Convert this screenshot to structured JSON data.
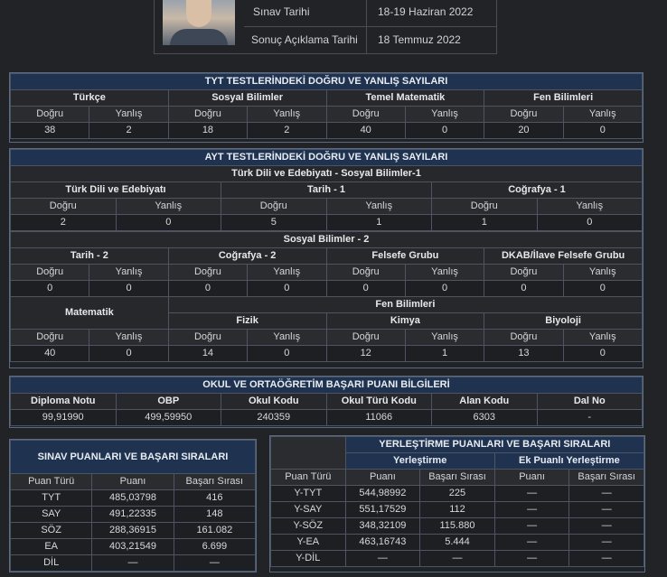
{
  "header": {
    "exam_date_label": "Sınav Tarihi",
    "exam_date_value": "18-19 Haziran 2022",
    "result_date_label": "Sonuç Açıklama Tarihi",
    "result_date_value": "18 Temmuz 2022"
  },
  "tyt": {
    "title": "TYT TESTLERİNDEKİ DOĞRU VE YANLIŞ SAYILARI",
    "subjects": [
      "Türkçe",
      "Sosyal Bilimler",
      "Temel Matematik",
      "Fen Bilimleri"
    ],
    "dogru": "Doğru",
    "yanlis": "Yanlış",
    "values": [
      [
        "38",
        "2"
      ],
      [
        "18",
        "2"
      ],
      [
        "40",
        "0"
      ],
      [
        "20",
        "0"
      ]
    ]
  },
  "ayt": {
    "title": "AYT TESTLERİNDEKİ DOĞRU VE YANLIŞ SAYILARI",
    "group1_title": "Türk Dili ve Edebiyatı - Sosyal Bilimler-1",
    "group1_subjects": [
      "Türk Dili ve Edebiyatı",
      "Tarih - 1",
      "Coğrafya - 1"
    ],
    "group1_values": [
      [
        "2",
        "0"
      ],
      [
        "5",
        "1"
      ],
      [
        "1",
        "0"
      ]
    ],
    "group2_title": "Sosyal Bilimler - 2",
    "group2_subjects": [
      "Tarih - 2",
      "Coğrafya - 2",
      "Felsefe Grubu",
      "DKAB/İlave Felsefe Grubu"
    ],
    "group2_values": [
      [
        "0",
        "0"
      ],
      [
        "0",
        "0"
      ],
      [
        "0",
        "0"
      ],
      [
        "0",
        "0"
      ]
    ],
    "math_title": "Matematik",
    "math_values": [
      "40",
      "0"
    ],
    "fen_title": "Fen Bilimleri",
    "fen_subjects": [
      "Fizik",
      "Kimya",
      "Biyoloji"
    ],
    "fen_values": [
      [
        "14",
        "0"
      ],
      [
        "12",
        "1"
      ],
      [
        "13",
        "0"
      ]
    ],
    "dogru": "Doğru",
    "yanlis": "Yanlış"
  },
  "okul": {
    "title": "OKUL VE ORTAÖĞRETİM BAŞARI PUANI BİLGİLERİ",
    "headers": [
      "Diploma Notu",
      "OBP",
      "Okul Kodu",
      "Okul Türü Kodu",
      "Alan Kodu",
      "Dal No"
    ],
    "values": [
      "99,91990",
      "499,59950",
      "240359",
      "11066",
      "6303",
      "-"
    ]
  },
  "sinav": {
    "title": "SINAV PUANLARI VE BAŞARI SIRALARI",
    "headers": [
      "Puan Türü",
      "Puanı",
      "Başarı Sırası"
    ],
    "rows": [
      [
        "TYT",
        "485,03798",
        "416"
      ],
      [
        "SAY",
        "491,22335",
        "148"
      ],
      [
        "SÖZ",
        "288,36915",
        "161.082"
      ],
      [
        "EA",
        "403,21549",
        "6.699"
      ],
      [
        "DİL",
        "—",
        "—"
      ]
    ]
  },
  "yerlestirme": {
    "title": "YERLEŞTİRME PUANLARI VE BAŞARI SIRALARI",
    "sub1": "Yerleştirme",
    "sub2": "Ek Puanlı Yerleştirme",
    "headers": [
      "Puan Türü",
      "Puanı",
      "Başarı Sırası",
      "Puanı",
      "Başarı Sırası"
    ],
    "rows": [
      [
        "Y-TYT",
        "544,98992",
        "225",
        "—",
        "—"
      ],
      [
        "Y-SAY",
        "551,17529",
        "112",
        "—",
        "—"
      ],
      [
        "Y-SÖZ",
        "348,32109",
        "115.880",
        "—",
        "—"
      ],
      [
        "Y-EA",
        "463,16743",
        "5.444",
        "—",
        "—"
      ],
      [
        "Y-DİL",
        "—",
        "—",
        "—",
        "—"
      ]
    ]
  }
}
